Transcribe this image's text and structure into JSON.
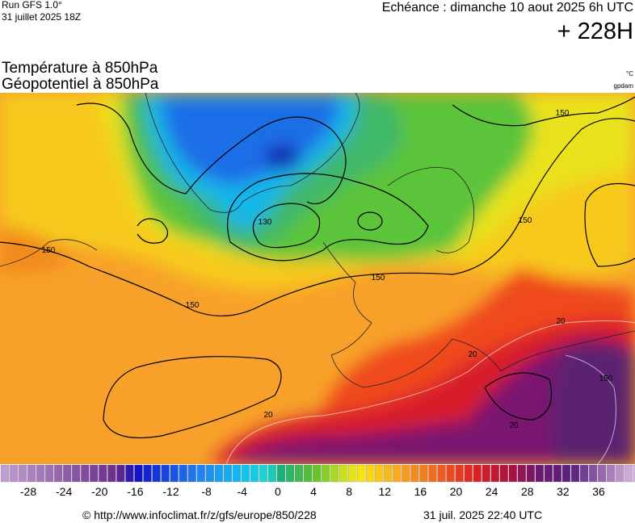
{
  "header": {
    "run": "Run GFS 1.0°",
    "run_date": "31 juillet 2025 18Z",
    "echeance": "Echéance : dimanche 10 aout 2025 6h UTC",
    "lead": "+ 228H"
  },
  "titles": {
    "temperature": "Température à 850hPa",
    "geopotential": "Géopotentiel à 850hPa",
    "temp_unit": "°C",
    "geo_unit": "gpdam"
  },
  "contour_labels": [
    "150",
    "130",
    "150",
    "150",
    "150",
    "150",
    "20",
    "20",
    "20",
    "20",
    "150"
  ],
  "colorbar": {
    "ticks": [
      -28,
      -24,
      -20,
      -16,
      -12,
      -8,
      -4,
      0,
      4,
      8,
      12,
      16,
      20,
      24,
      28,
      32,
      36
    ]
  },
  "footer": {
    "url": "© http://www.infoclimat.fr/z/gfs/europe/850/228",
    "generated": "31 juil. 2025 22:40 UTC"
  }
}
